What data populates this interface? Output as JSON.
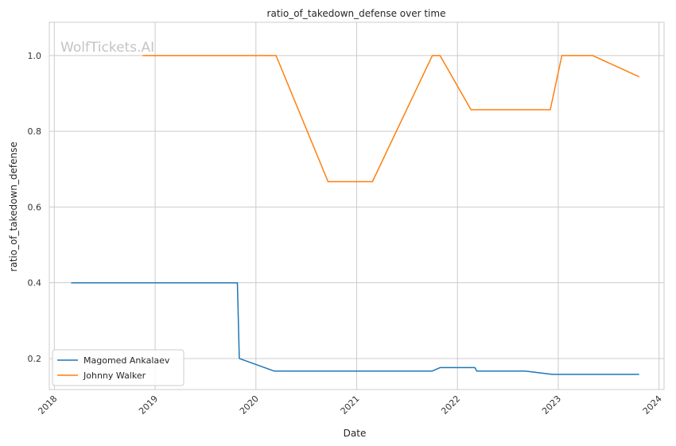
{
  "chart_data": {
    "type": "line",
    "title": "ratio_of_takedown_defense over time",
    "xlabel": "Date",
    "ylabel": "ratio_of_takedown_defense",
    "watermark": "WolfTickets.AI",
    "x_tick_labels": [
      "2018",
      "2019",
      "2020",
      "2021",
      "2022",
      "2023",
      "2024"
    ],
    "y_tick_labels": [
      "0.2",
      "0.4",
      "0.6",
      "0.8",
      "1.0"
    ],
    "x_range": [
      2017.95,
      2024.05
    ],
    "ylim": [
      0.118,
      1.088
    ],
    "grid": true,
    "legend_placement": "lower-left",
    "series": [
      {
        "name": "Magomed Ankalaev",
        "color": "#1f77b4",
        "x": [
          "2018-03-03",
          "2019-10-26",
          "2019-11-02",
          "2020-03-07",
          "2021-10-02",
          "2021-10-30",
          "2022-03-05",
          "2022-03-12",
          "2022-09-03",
          "2022-12-10",
          "2023-10-21"
        ],
        "y": [
          0.4,
          0.4,
          0.2,
          0.167,
          0.167,
          0.176,
          0.176,
          0.167,
          0.167,
          0.158,
          0.158
        ]
      },
      {
        "name": "Johnny Walker",
        "color": "#ff7f0e",
        "x": [
          "2018-11-17",
          "2020-03-14",
          "2020-09-19",
          "2021-02-27",
          "2021-10-02",
          "2021-10-30",
          "2022-02-19",
          "2022-12-03",
          "2023-01-14",
          "2023-05-06",
          "2023-10-21"
        ],
        "y": [
          1.0,
          1.0,
          0.667,
          0.667,
          1.0,
          1.0,
          0.857,
          0.857,
          1.0,
          1.0,
          0.944
        ]
      }
    ]
  }
}
